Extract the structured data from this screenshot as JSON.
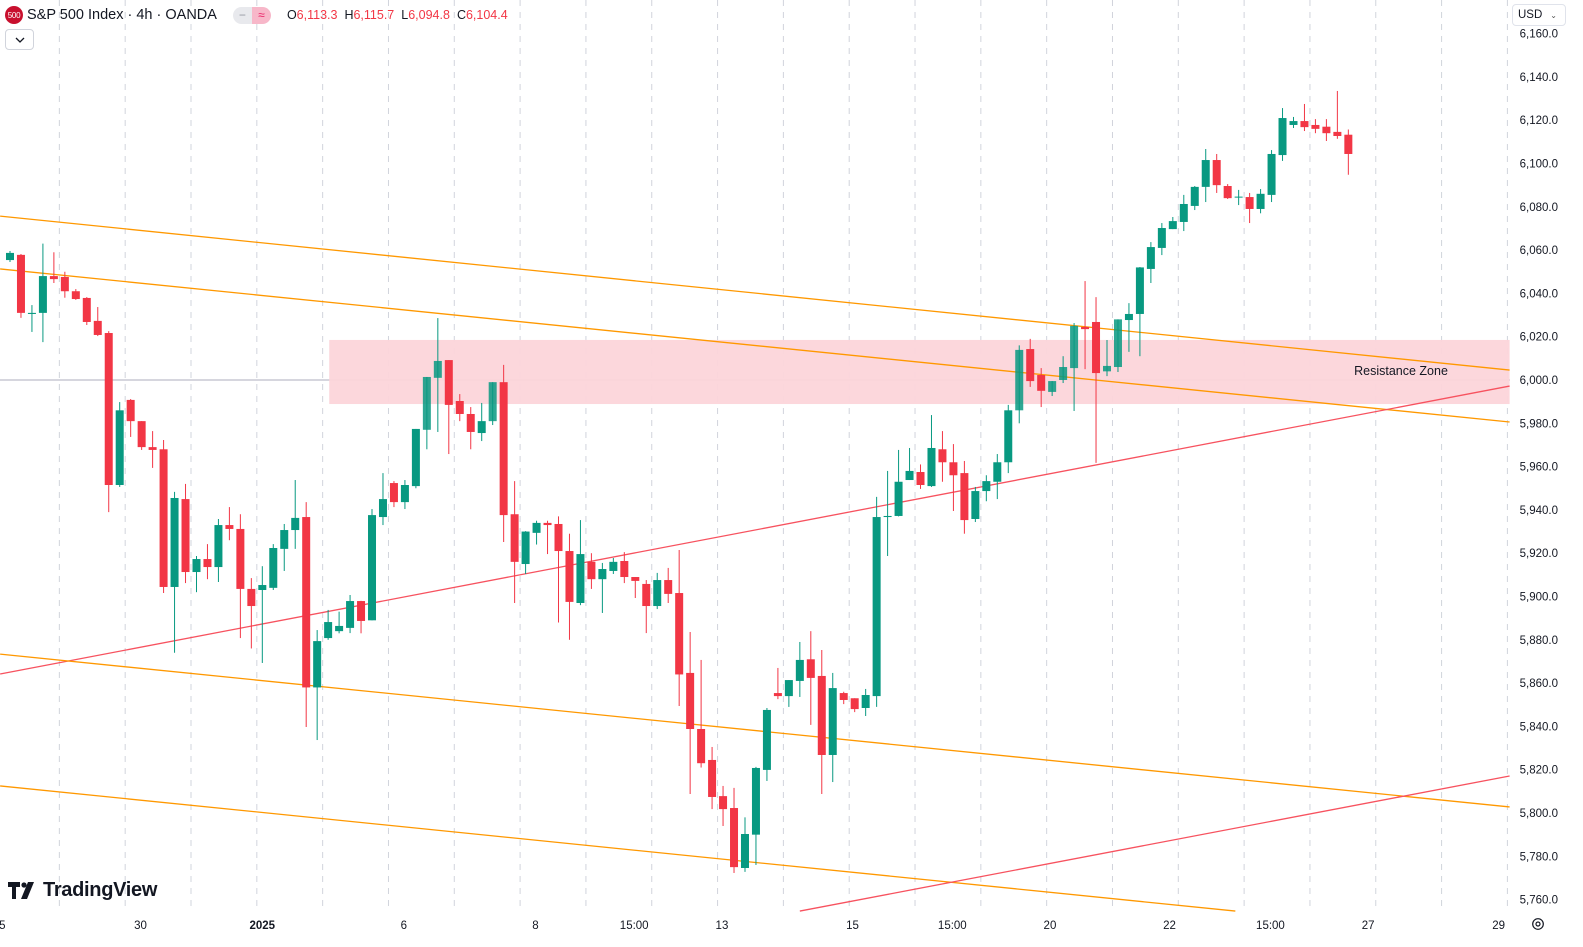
{
  "header": {
    "symbol_badge": "500",
    "title": "S&P 500 Index · 4h · OANDA",
    "pill_left": "−",
    "pill_right": "≈",
    "ohlc": [
      {
        "key": "O",
        "value": "6,113.3"
      },
      {
        "key": "H",
        "value": "6,115.7"
      },
      {
        "key": "L",
        "value": "6,094.8"
      },
      {
        "key": "C",
        "value": "6,104.4"
      }
    ],
    "collapse_icon": "chevron-down-icon"
  },
  "currency": {
    "label": "USD",
    "icon": "chevron-down-icon"
  },
  "branding": {
    "logo_text": "TradingView"
  },
  "colors": {
    "up": "#089981",
    "down": "#F23645",
    "channel": "#FF9800",
    "support": "#F7525F",
    "zone": "#FCD5DA",
    "grid": "#D1D4DC"
  },
  "chart_data": {
    "type": "candlestick",
    "title": "S&P 500 Index · 4h · OANDA",
    "ylim": [
      5750,
      6165
    ],
    "y_ticks": [
      "6,160.0",
      "6,140.0",
      "6,120.0",
      "6,100.0",
      "6,080.0",
      "6,060.0",
      "6,040.0",
      "6,020.0",
      "6,000.0",
      "5,980.0",
      "5,960.0",
      "5,940.0",
      "5,920.0",
      "5,900.0",
      "5,880.0",
      "5,860.0",
      "5,840.0",
      "5,820.0",
      "5,800.0",
      "5,780.0",
      "5,760.0"
    ],
    "y_tick_values": [
      6160,
      6140,
      6120,
      6100,
      6080,
      6060,
      6040,
      6020,
      6000,
      5980,
      5960,
      5940,
      5920,
      5900,
      5880,
      5860,
      5840,
      5820,
      5800,
      5780,
      5760
    ],
    "x_ticks": [
      {
        "label": "5",
        "index": -0.7
      },
      {
        "label": "30",
        "index": 11.9
      },
      {
        "label": "2025",
        "index": 23,
        "bold": true
      },
      {
        "label": "6",
        "index": 35.9
      },
      {
        "label": "8",
        "index": 47.9
      },
      {
        "label": "15:00",
        "index": 56.9
      },
      {
        "label": "13",
        "index": 64.9
      },
      {
        "label": "15",
        "index": 76.8
      },
      {
        "label": "15:00",
        "index": 85.9
      },
      {
        "label": "20",
        "index": 94.8
      },
      {
        "label": "22",
        "index": 105.7
      },
      {
        "label": "15:00",
        "index": 114.9
      },
      {
        "label": "27",
        "index": 123.8
      },
      {
        "label": "29",
        "index": 135.7
      }
    ],
    "candles_ohlc": [
      [
        6055.4,
        6059.6,
        6054.5,
        6058.7
      ],
      [
        6057.8,
        6058.2,
        6028.7,
        6031.0
      ],
      [
        6030.5,
        6034.6,
        6022.2,
        6031.0
      ],
      [
        6031.0,
        6063.0,
        6017.5,
        6048.0
      ],
      [
        6048.0,
        6059.0,
        6044.8,
        6046.6
      ],
      [
        6047.6,
        6050.0,
        6038.0,
        6041.0
      ],
      [
        6041.0,
        6042.0,
        6037.0,
        6037.4
      ],
      [
        6037.9,
        6038.3,
        6025.4,
        6026.8
      ],
      [
        6027.3,
        6033.7,
        6020.3,
        6020.8
      ],
      [
        6021.7,
        6022.6,
        5939.0,
        5951.5
      ],
      [
        5951.5,
        5989.8,
        5950.6,
        5986.0
      ],
      [
        5990.8,
        5991.2,
        5973.7,
        5981.0
      ],
      [
        5981.0,
        5981.0,
        5967.7,
        5969.0
      ],
      [
        5969.0,
        5976.4,
        5959.4,
        5967.7
      ],
      [
        5968.0,
        5972.3,
        5901.6,
        5904.4
      ],
      [
        5904.4,
        5948.3,
        5874.0,
        5945.5
      ],
      [
        5945.0,
        5952.0,
        5906.2,
        5911.3
      ],
      [
        5911.3,
        5918.7,
        5902.0,
        5917.3
      ],
      [
        5917.3,
        5924.2,
        5908.0,
        5913.6
      ],
      [
        5913.6,
        5935.8,
        5906.7,
        5933.0
      ],
      [
        5933.0,
        5941.3,
        5926.0,
        5931.2
      ],
      [
        5931.2,
        5938.0,
        5880.8,
        5903.5
      ],
      [
        5903.5,
        5908.5,
        5876.0,
        5895.6
      ],
      [
        5903.0,
        5914.0,
        5869.3,
        5905.3
      ],
      [
        5904.0,
        5924.2,
        5903.0,
        5922.4
      ],
      [
        5922.0,
        5933.5,
        5911.8,
        5930.7
      ],
      [
        5930.7,
        5953.8,
        5922.0,
        5936.3
      ],
      [
        5936.7,
        5943.6,
        5839.7,
        5858.0
      ],
      [
        5858.0,
        5884.5,
        5833.7,
        5879.4
      ],
      [
        5880.8,
        5893.8,
        5880.0,
        5888.2
      ],
      [
        5884.0,
        5893.0,
        5883.0,
        5886.4
      ],
      [
        5885.5,
        5900.7,
        5883.1,
        5897.9
      ],
      [
        5897.9,
        5898.0,
        5883.0,
        5888.7
      ],
      [
        5889.0,
        5940.4,
        5889.0,
        5937.6
      ],
      [
        5936.7,
        5957.0,
        5933.0,
        5945.0
      ],
      [
        5952.4,
        5953.3,
        5941.3,
        5943.6
      ],
      [
        5943.6,
        5953.8,
        5940.4,
        5951.5
      ],
      [
        5951.0,
        5977.4,
        5950.0,
        5977.4
      ],
      [
        5977.0,
        6001.4,
        5968.0,
        6001.4
      ],
      [
        6001.0,
        6028.6,
        5976.0,
        6008.8
      ],
      [
        6009.2,
        6009.2,
        5965.8,
        5988.5
      ],
      [
        5990.3,
        5993.5,
        5981.0,
        5984.3
      ],
      [
        5984.3,
        5987.5,
        5968.0,
        5976.0
      ],
      [
        5975.5,
        5989.4,
        5971.8,
        5981.0
      ],
      [
        5981.0,
        5999.0,
        5979.2,
        5999.0
      ],
      [
        5999.0,
        6007.0,
        5925.2,
        5937.6
      ],
      [
        5938.0,
        5953.3,
        5897.0,
        5916.0
      ],
      [
        5915.0,
        5930.2,
        5910.4,
        5930.0
      ],
      [
        5929.4,
        5935.0,
        5924.0,
        5934.0
      ],
      [
        5934.0,
        5935.0,
        5919.6,
        5933.0
      ],
      [
        5933.5,
        5937.0,
        5888.0,
        5921.0
      ],
      [
        5921.0,
        5929.0,
        5880.0,
        5897.5
      ],
      [
        5897.0,
        5935.3,
        5896.0,
        5919.6
      ],
      [
        5916.0,
        5920.0,
        5903.5,
        5908.0
      ],
      [
        5908.0,
        5915.5,
        5892.4,
        5912.7
      ],
      [
        5911.8,
        5917.8,
        5910.4,
        5916.0
      ],
      [
        5916.4,
        5920.5,
        5906.2,
        5909.0
      ],
      [
        5909.0,
        5909.0,
        5899.3,
        5907.2
      ],
      [
        5905.8,
        5907.6,
        5883.1,
        5895.6
      ],
      [
        5895.6,
        5910.9,
        5894.2,
        5907.6
      ],
      [
        5907.6,
        5913.2,
        5897.0,
        5901.2
      ],
      [
        5901.6,
        5921.5,
        5849.4,
        5864.0
      ],
      [
        5864.7,
        5883.6,
        5808.8,
        5838.8
      ],
      [
        5838.8,
        5870.7,
        5821.0,
        5823.0
      ],
      [
        5824.5,
        5830.5,
        5801.8,
        5807.4
      ],
      [
        5807.8,
        5812.5,
        5794.0,
        5801.8
      ],
      [
        5802.3,
        5811.6,
        5772.3,
        5775.0
      ],
      [
        5774.6,
        5798.0,
        5772.8,
        5790.3
      ],
      [
        5790.0,
        5821.3,
        5776.0,
        5820.8
      ],
      [
        5819.9,
        5848.5,
        5814.8,
        5847.6
      ],
      [
        5855.4,
        5867.0,
        5852.6,
        5854.0
      ],
      [
        5854.0,
        5861.4,
        5849.0,
        5861.4
      ],
      [
        5861.0,
        5879.0,
        5853.6,
        5870.7
      ],
      [
        5871.0,
        5884.0,
        5840.7,
        5862.4
      ],
      [
        5863.3,
        5875.3,
        5808.8,
        5826.8
      ],
      [
        5826.8,
        5864.7,
        5814.3,
        5857.7
      ],
      [
        5855.4,
        5856.0,
        5850.3,
        5852.2
      ],
      [
        5853.0,
        5853.0,
        5846.6,
        5848.0
      ],
      [
        5848.5,
        5857.3,
        5844.8,
        5854.5
      ],
      [
        5854.0,
        5946.0,
        5849.0,
        5936.7
      ],
      [
        5936.7,
        5958.0,
        5918.7,
        5937.2
      ],
      [
        5937.2,
        5967.7,
        5937.0,
        5953.0
      ],
      [
        5953.8,
        5968.6,
        5953.8,
        5958.0
      ],
      [
        5957.5,
        5961.0,
        5949.7,
        5951.5
      ],
      [
        5951.0,
        5983.8,
        5950.6,
        5968.6
      ],
      [
        5968.0,
        5976.4,
        5953.0,
        5962.0
      ],
      [
        5962.0,
        5970.4,
        5939.5,
        5956.0
      ],
      [
        5957.0,
        5962.6,
        5929.0,
        5935.3
      ],
      [
        5935.8,
        5950.6,
        5934.4,
        5948.7
      ],
      [
        5948.7,
        5956.0,
        5944.0,
        5953.3
      ],
      [
        5953.0,
        5965.8,
        5945.0,
        5962.0
      ],
      [
        5962.0,
        5988.5,
        5957.0,
        5986.0
      ],
      [
        5986.0,
        6016.0,
        5980.0,
        6013.9
      ],
      [
        6014.3,
        6019.0,
        5996.8,
        5999.5
      ],
      [
        6002.3,
        6005.5,
        5987.5,
        5995.0
      ],
      [
        5994.5,
        5999.5,
        5992.6,
        5999.5
      ],
      [
        6000.0,
        6011.0,
        5998.6,
        6006.0
      ],
      [
        6005.5,
        6026.3,
        5985.7,
        6025.0
      ],
      [
        6024.5,
        6045.7,
        6005.0,
        6023.5
      ],
      [
        6026.8,
        6038.3,
        5961.7,
        6003.2
      ],
      [
        6004.0,
        6018.5,
        6001.8,
        6006.5
      ],
      [
        6006.0,
        6028.0,
        6003.7,
        6028.0
      ],
      [
        6027.7,
        6035.5,
        6013.0,
        6030.5
      ],
      [
        6030.5,
        6052.2,
        6011.0,
        6052.0
      ],
      [
        6051.3,
        6063.7,
        6044.8,
        6061.4
      ],
      [
        6061.0,
        6072.5,
        6057.7,
        6070.2
      ],
      [
        6069.7,
        6075.3,
        6069.7,
        6073.4
      ],
      [
        6073.0,
        6085.5,
        6068.8,
        6081.3
      ],
      [
        6080.4,
        6089.6,
        6078.5,
        6089.2
      ],
      [
        6089.2,
        6106.7,
        6082.2,
        6101.6
      ],
      [
        6101.6,
        6104.4,
        6086.4,
        6090.0
      ],
      [
        6089.6,
        6090.5,
        6083.6,
        6084.0
      ],
      [
        6084.5,
        6087.8,
        6080.8,
        6084.7
      ],
      [
        6084.5,
        6086.4,
        6072.5,
        6079.0
      ],
      [
        6079.0,
        6088.2,
        6077.0,
        6086.0
      ],
      [
        6085.5,
        6106.2,
        6082.2,
        6104.4
      ],
      [
        6103.9,
        6125.6,
        6101.2,
        6121.0
      ],
      [
        6117.8,
        6121.5,
        6116.4,
        6119.6
      ],
      [
        6119.6,
        6127.5,
        6115.0,
        6116.8
      ],
      [
        6117.8,
        6120.5,
        6114.0,
        6116.0
      ],
      [
        6117.0,
        6120.5,
        6110.4,
        6114.0
      ],
      [
        6114.6,
        6133.5,
        6111.4,
        6112.7
      ],
      [
        6113.3,
        6115.7,
        6094.8,
        6104.4
      ]
    ],
    "reference_line": {
      "price": 6000
    },
    "zone": {
      "label": "Resistance Zone",
      "from_index": 29.1,
      "to_index": 136.7,
      "top": 6018.5,
      "bottom": 5988.9
    },
    "trendlines": [
      {
        "name": "channel-upper-line",
        "color": "channel",
        "from": [
          -0.9,
          6075.7
        ],
        "to": [
          136.7,
          6004.6
        ]
      },
      {
        "name": "channel-mid-line",
        "color": "channel",
        "from": [
          -0.9,
          6051.3
        ],
        "to": [
          136.7,
          5980.6
        ]
      },
      {
        "name": "support-trendline",
        "color": "support",
        "from": [
          -0.9,
          5864.2
        ],
        "to": [
          136.7,
          5997.2
        ]
      },
      {
        "name": "channel-lower-line",
        "color": "channel",
        "from": [
          -0.9,
          5873.4
        ],
        "to": [
          136.7,
          5802.8
        ]
      },
      {
        "name": "channel-bottom-line",
        "color": "channel",
        "from": [
          -0.9,
          5812.5
        ],
        "to": [
          111.7,
          5754.7
        ]
      },
      {
        "name": "lower-support-trendline",
        "color": "support",
        "from": [
          72,
          5754.7
        ],
        "to": [
          136.7,
          5817.1
        ]
      }
    ]
  }
}
